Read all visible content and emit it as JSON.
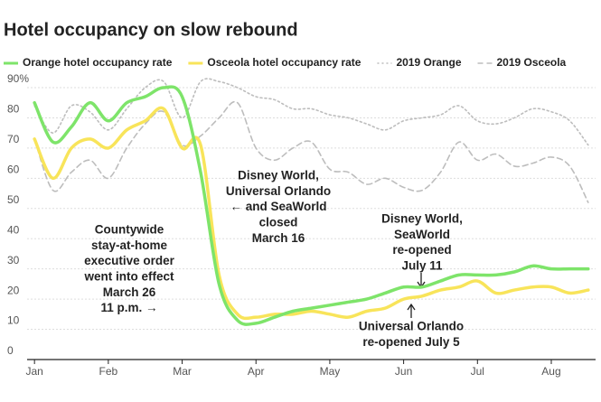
{
  "chart_data": {
    "type": "line",
    "title": "Hotel occupancy on slow rebound",
    "x": [
      1,
      1.25,
      1.5,
      1.75,
      2,
      2.25,
      2.5,
      2.75,
      3,
      3.25,
      3.5,
      3.75,
      4,
      4.25,
      4.5,
      4.75,
      5,
      5.25,
      5.5,
      5.75,
      6,
      6.25,
      6.5,
      6.75,
      7,
      7.25,
      7.5,
      7.75,
      8,
      8.25,
      8.5
    ],
    "series": [
      {
        "name": "Orange hotel occupancy rate",
        "color": "#7ee46a",
        "dash": "solid",
        "values": [
          85,
          72,
          77,
          85,
          79,
          85,
          87,
          90,
          87,
          62,
          25,
          13,
          12,
          14,
          16,
          17,
          18,
          19,
          20,
          22,
          24,
          24,
          26,
          28,
          28,
          28,
          29,
          31,
          30,
          30,
          30
        ]
      },
      {
        "name": "Osceola hotel occupancy rate",
        "color": "#f8e45a",
        "dash": "solid",
        "values": [
          73,
          60,
          70,
          73,
          70,
          76,
          79,
          83,
          70,
          71,
          28,
          15,
          14,
          15,
          15,
          16,
          15,
          14,
          16,
          17,
          20,
          21,
          23,
          24,
          26,
          22,
          23,
          24,
          24,
          22,
          23
        ]
      },
      {
        "name": "2019 Orange",
        "color": "#bdbdbd",
        "dash": "dotted",
        "values": [
          84,
          75,
          84,
          82,
          76,
          83,
          90,
          92,
          80,
          92,
          92,
          90,
          87,
          86,
          83,
          83,
          81,
          80,
          78,
          76,
          79,
          80,
          81,
          84,
          79,
          78,
          80,
          83,
          82,
          79,
          71
        ]
      },
      {
        "name": "2019 Osceola",
        "color": "#bdbdbd",
        "dash": "dashed",
        "values": [
          73,
          56,
          62,
          66,
          60,
          70,
          78,
          82,
          71,
          74,
          80,
          85,
          70,
          66,
          70,
          72,
          63,
          62,
          58,
          60,
          57,
          56,
          62,
          72,
          66,
          68,
          64,
          65,
          67,
          64,
          52
        ]
      }
    ],
    "xlim": [
      0.9,
      8.6
    ],
    "xticks": [
      {
        "value": 1,
        "label": "Jan"
      },
      {
        "value": 2,
        "label": "Feb"
      },
      {
        "value": 3,
        "label": "Mar"
      },
      {
        "value": 4,
        "label": "Apr"
      },
      {
        "value": 5,
        "label": "May"
      },
      {
        "value": 6,
        "label": "Jun"
      },
      {
        "value": 7,
        "label": "Jul"
      },
      {
        "value": 8,
        "label": "Aug"
      }
    ],
    "ylim": [
      0,
      90
    ],
    "yticks": [
      0,
      10,
      20,
      30,
      40,
      50,
      60,
      70,
      80,
      {
        "value": 90,
        "label": "90%"
      }
    ],
    "grid": true,
    "annotations": [
      {
        "lines": [
          "Countywide",
          "stay-at-home",
          "executive order",
          "went into effect",
          "March 26",
          "11 p.m. →"
        ]
      },
      {
        "lines": [
          "Disney World,",
          "Universal Orlando",
          "← and SeaWorld",
          "closed",
          "March 16"
        ]
      },
      {
        "lines": [
          "Disney World,",
          "SeaWorld",
          "re-opened",
          "July 11"
        ]
      },
      {
        "lines": [
          "Universal Orlando",
          "re-opened July 5"
        ]
      }
    ]
  }
}
